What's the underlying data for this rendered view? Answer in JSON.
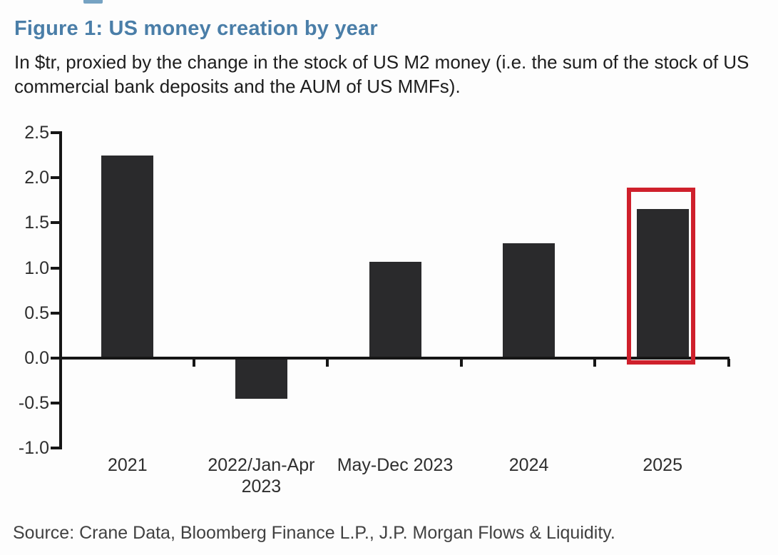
{
  "header": {
    "title": "Figure 1: US money creation by year",
    "subtitle": "In $tr, proxied by the change in the stock of US M2 money (i.e. the sum of the stock of US commercial bank deposits and the AUM of US MMFs)."
  },
  "footer": {
    "source": "Source: Crane Data, Bloomberg Finance L.P., J.P. Morgan Flows & Liquidity."
  },
  "colors": {
    "title": "#4a7ea8",
    "bar": "#2a2a2c",
    "axis": "#161616",
    "highlight": "#cf202c",
    "tick_label": "#2e2e2e"
  },
  "chart_data": {
    "type": "bar",
    "title": "Figure 1: US money creation by year",
    "subtitle": "In $tr, proxied by the change in the stock of US M2 money (i.e. the sum of the stock of US commercial bank deposits and the AUM of US MMFs).",
    "units": "$tr",
    "categories": [
      "2021",
      "2022/Jan-Apr 2023",
      "May-Dec 2023",
      "2024",
      "2025"
    ],
    "category_label_lines": [
      [
        "2021"
      ],
      [
        "2022/Jan-Apr",
        "2023"
      ],
      [
        "May-Dec 2023"
      ],
      [
        "2024"
      ],
      [
        "2025"
      ]
    ],
    "values": [
      2.25,
      -0.45,
      1.07,
      1.27,
      1.65
    ],
    "xlabel": "",
    "ylabel": "",
    "ylim": [
      -1.0,
      2.5
    ],
    "yticks": [
      2.5,
      2.0,
      1.5,
      1.0,
      0.5,
      0.0,
      -0.5,
      -1.0
    ],
    "grid": false,
    "legend": false,
    "highlight": {
      "category": "2025",
      "style": "red-outline-box"
    },
    "source": "Source: Crane Data, Bloomberg Finance L.P., J.P. Morgan Flows & Liquidity."
  }
}
